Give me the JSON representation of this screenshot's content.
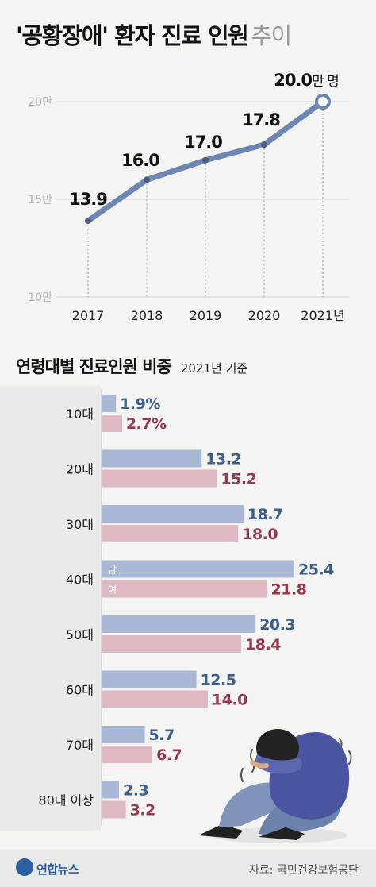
{
  "title_bold": "'공황장애' 환자 진료 인원",
  "title_light": "추이",
  "chart_data": [
    {
      "type": "line",
      "x": [
        "2017",
        "2018",
        "2019",
        "2020",
        "2021년"
      ],
      "values": [
        13.9,
        16.0,
        17.0,
        17.8,
        20.0
      ],
      "value_labels": [
        "13.9",
        "16.0",
        "17.0",
        "17.8",
        "20.0"
      ],
      "last_label_unit": "만 명",
      "y_ticks": [
        "10만",
        "15만",
        "20만"
      ],
      "y_tick_values": [
        10,
        15,
        20
      ],
      "ylim": [
        10,
        20
      ],
      "unit": "만 명",
      "line_color": "#6d86b3",
      "grid": true
    },
    {
      "type": "bar",
      "title": "연령대별 진료인원 비중",
      "basis": "2021년 기준",
      "categories": [
        "10대",
        "20대",
        "30대",
        "40대",
        "50대",
        "60대",
        "70대",
        "80대 이상"
      ],
      "series": [
        {
          "name": "남",
          "values": [
            1.9,
            13.2,
            18.7,
            25.4,
            20.3,
            12.5,
            5.7,
            2.3
          ],
          "labels": [
            "1.9%",
            "13.2",
            "18.7",
            "25.4",
            "20.3",
            "12.5",
            "5.7",
            "2.3"
          ],
          "bar_color": "#a9b9d5",
          "text_color": "#3b5e8c"
        },
        {
          "name": "여",
          "values": [
            2.7,
            15.2,
            18.0,
            21.8,
            18.4,
            14.0,
            6.7,
            3.2
          ],
          "labels": [
            "2.7%",
            "15.2",
            "18.0",
            "21.8",
            "18.4",
            "14.0",
            "6.7",
            "3.2"
          ],
          "bar_color": "#ddb9c2",
          "text_color": "#94394f"
        }
      ]
    }
  ],
  "footer": {
    "logo": "연합뉴스",
    "source": "자료: 국민건강보험공단"
  }
}
